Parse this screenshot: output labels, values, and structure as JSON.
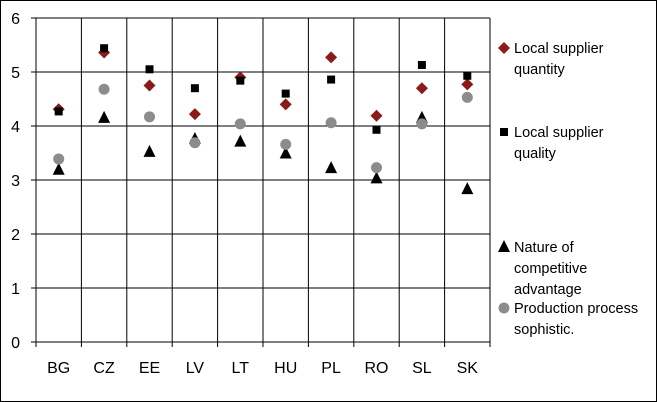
{
  "chart_data": {
    "type": "scatter",
    "categories": [
      "BG",
      "CZ",
      "EE",
      "LV",
      "LT",
      "HU",
      "PL",
      "RO",
      "SL",
      "SK"
    ],
    "ylim": [
      0,
      6
    ],
    "yticks": [
      0,
      1,
      2,
      3,
      4,
      5,
      6
    ],
    "grid": true,
    "legend_position": "right",
    "series": [
      {
        "name_lines": [
          "Local supplier",
          "quantity"
        ],
        "marker": "diamond",
        "color": "#8B1A1A",
        "values": [
          4.31,
          5.36,
          4.75,
          4.22,
          4.9,
          4.4,
          5.27,
          4.19,
          4.7,
          4.77
        ]
      },
      {
        "name_lines": [
          "Local supplier",
          "quality"
        ],
        "marker": "square",
        "color": "#000000",
        "values": [
          4.27,
          5.44,
          5.05,
          4.7,
          4.84,
          4.6,
          4.86,
          3.93,
          5.13,
          4.93
        ]
      },
      {
        "name_lines": [
          "Nature of",
          "competitive",
          "advantage"
        ],
        "marker": "triangle",
        "color": "#000000",
        "values": [
          3.19,
          4.15,
          3.52,
          3.76,
          3.71,
          3.49,
          3.22,
          3.03,
          4.15,
          2.83
        ]
      },
      {
        "name_lines": [
          "Production process",
          "sophistic."
        ],
        "marker": "circle",
        "color": "#8C8C8C",
        "values": [
          3.39,
          4.68,
          4.17,
          3.69,
          4.04,
          3.66,
          4.06,
          3.23,
          4.04,
          4.53
        ]
      }
    ]
  }
}
